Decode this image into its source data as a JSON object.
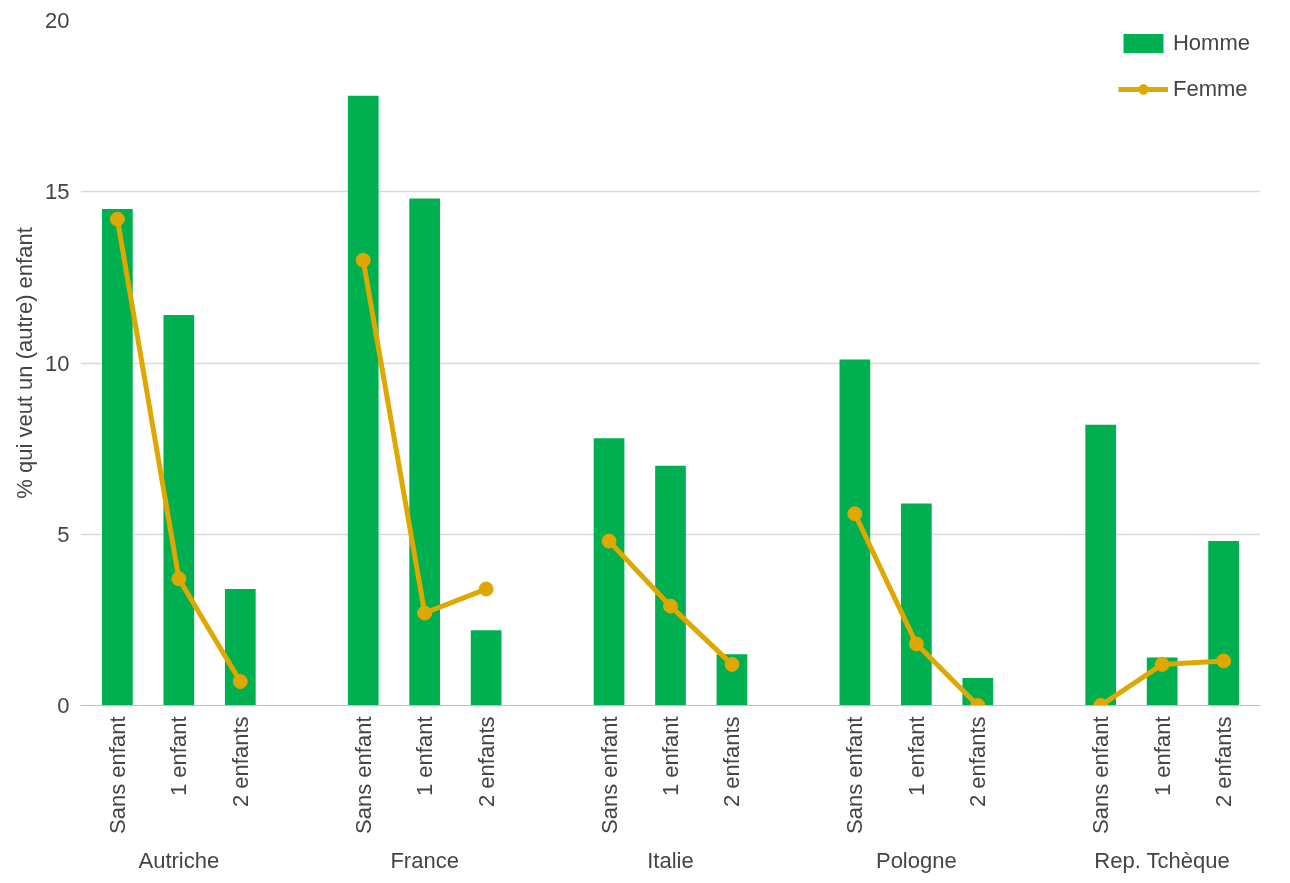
{
  "chart_data": {
    "type": "bar",
    "ylabel": "% qui veut un (autre) enfant",
    "categories": [
      "Sans enfant",
      "1 enfant",
      "2 enfants",
      null,
      "Sans enfant",
      "1 enfant",
      "2 enfants",
      null,
      "Sans enfant",
      "1 enfant",
      "2 enfants",
      null,
      "Sans enfant",
      "1 enfant",
      "2 enfants",
      null,
      "Sans enfant",
      "1 enfant",
      "2 enfants"
    ],
    "annotations": [
      "Autriche",
      "France",
      "Italie",
      "Pologne",
      "Rep. Tchèque"
    ],
    "series": [
      {
        "name": "Homme",
        "color": "#00b050",
        "values": [
          14.5,
          11.4,
          3.4,
          null,
          17.8,
          14.8,
          2.2,
          null,
          7.8,
          7.0,
          1.5,
          null,
          10.1,
          5.9,
          0.8,
          null,
          8.2,
          1.4,
          4.8
        ]
      },
      {
        "name": "Femme",
        "type": "line",
        "color": "#dfa800",
        "values": [
          14.2,
          3.7,
          0.7,
          null,
          13.0,
          2.7,
          3.4,
          null,
          4.8,
          2.9,
          1.2,
          null,
          5.6,
          1.8,
          0.0,
          null,
          0.0,
          1.2,
          1.3
        ]
      }
    ],
    "ylim": [
      0,
      20
    ],
    "yticks": [
      0,
      5,
      10,
      15,
      20
    ],
    "grid": "y",
    "legend": "top right",
    "marker": "circle",
    "line_style": "solid"
  }
}
